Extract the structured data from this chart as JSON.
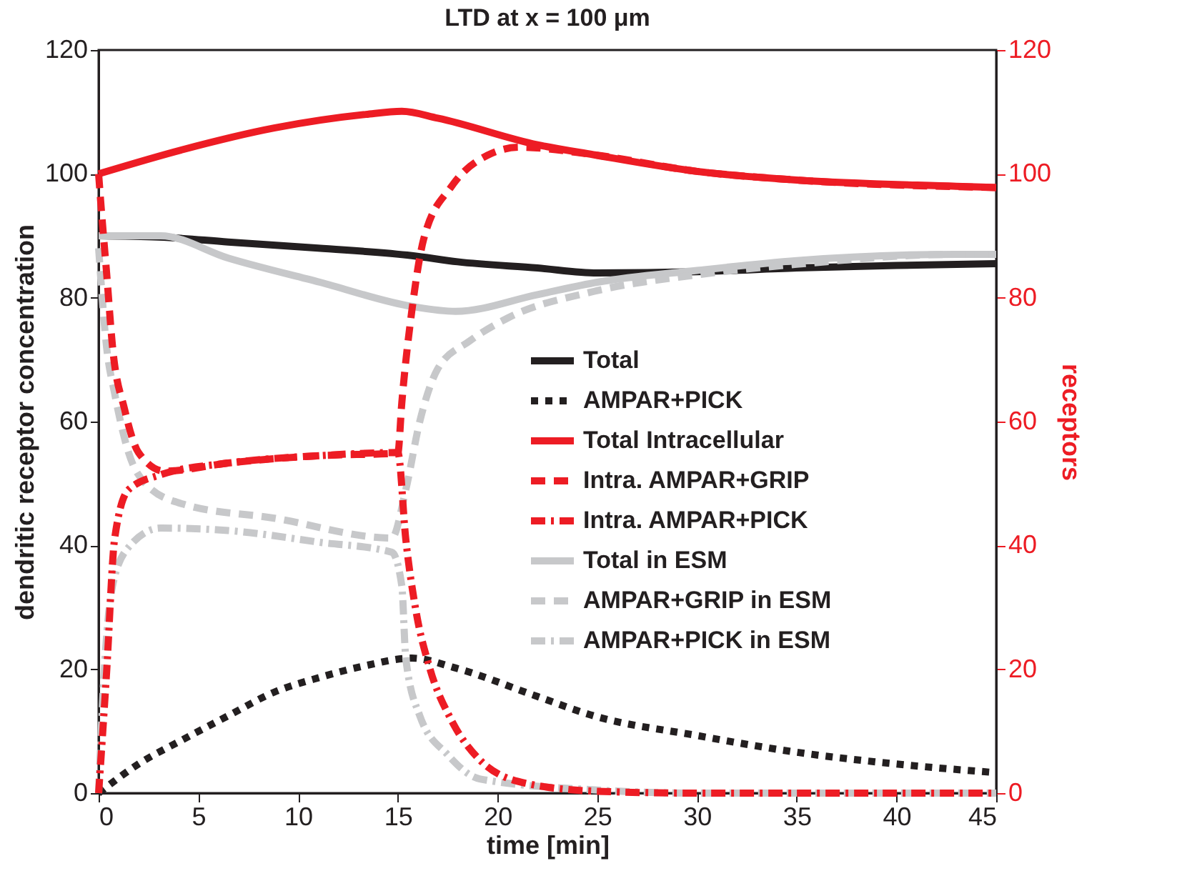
{
  "chart_data": {
    "type": "line",
    "title": "LTD at x = 100 μm",
    "xlabel": "time [min]",
    "ylabel": "dendritic receptor concentration",
    "y2label": "receptors",
    "xlim": [
      0,
      45
    ],
    "xticks": [
      0,
      5,
      10,
      15,
      20,
      25,
      30,
      35,
      40,
      45
    ],
    "ylim": [
      0,
      120
    ],
    "yticks": [
      0,
      20,
      40,
      60,
      80,
      100,
      120
    ],
    "y2lim": [
      0,
      120
    ],
    "y2ticks": [
      0,
      20,
      40,
      60,
      80,
      100,
      120
    ],
    "grid": false,
    "legend": "right",
    "marker": "none",
    "series": [
      {
        "name": "Total",
        "color": "#231f20",
        "line_style": "solid",
        "x": [
          0,
          3,
          6.5,
          11,
          15.7,
          18,
          22,
          25,
          30,
          35,
          40,
          45
        ],
        "values": [
          90,
          89.8,
          89,
          88,
          86.8,
          85.8,
          84.8,
          84,
          84.2,
          84.8,
          85.2,
          85.5
        ]
      },
      {
        "name": "AMPAR+PICK",
        "color": "#231f20",
        "line_style": "dotted",
        "x": [
          0,
          2,
          4.2,
          6.5,
          8.8,
          11.1,
          13.4,
          15.7,
          17.9,
          22,
          24.8,
          30,
          35,
          40,
          45
        ],
        "values": [
          0,
          4.7,
          8.6,
          12.5,
          16.3,
          18.7,
          20.6,
          21.8,
          20.2,
          15.6,
          12.5,
          9.3,
          6.6,
          4.7,
          3.3
        ]
      },
      {
        "name": "Total Intracellular",
        "color": "#ed1c24",
        "line_style": "solid",
        "axis": "y2",
        "x": [
          0,
          4.2,
          8.8,
          13.4,
          15.2,
          17,
          22,
          24.8,
          30,
          35,
          43,
          45
        ],
        "values": [
          100,
          103.9,
          107.4,
          109.6,
          110.1,
          109,
          104.7,
          103.1,
          100.4,
          99,
          98,
          97.8
        ]
      },
      {
        "name": "Intra. AMPAR+GRIP",
        "color": "#ed1c24",
        "line_style": "dashed",
        "axis": "y2",
        "x": [
          0,
          0.1,
          0.4,
          0.7,
          1.3,
          2,
          3.3,
          6.5,
          11.1,
          15,
          15.2,
          15.7,
          16.3,
          17.7,
          19.5,
          21.1,
          24.8,
          30,
          35,
          45
        ],
        "values": [
          100,
          95.7,
          84,
          72,
          62,
          55,
          52,
          53.3,
          54.5,
          54.9,
          63,
          77.8,
          89.5,
          98,
          103,
          104.3,
          103.1,
          100.4,
          99,
          97.8
        ]
      },
      {
        "name": "Intra. AMPAR+PICK",
        "color": "#ed1c24",
        "line_style": "dashdot",
        "axis": "y2",
        "x": [
          0,
          0.4,
          0.8,
          1.5,
          3.1,
          6.5,
          11.1,
          15,
          15.4,
          15.9,
          16.6,
          17.7,
          19.1,
          21.4,
          25,
          30,
          45
        ],
        "values": [
          0,
          19.5,
          41,
          49,
          51.4,
          53.3,
          54.5,
          55,
          41,
          29.6,
          20.2,
          11.7,
          5.4,
          1.6,
          0.3,
          0,
          0
        ]
      },
      {
        "name": "Total in ESM",
        "color": "#c7c8ca",
        "line_style": "solid",
        "x": [
          0,
          3.1,
          6.5,
          11.1,
          15.7,
          17.9,
          22,
          25,
          30,
          35,
          43,
          45
        ],
        "values": [
          90,
          90,
          86.4,
          82.5,
          78.6,
          77.8,
          80.5,
          82.5,
          84.4,
          86,
          87,
          87
        ]
      },
      {
        "name": "AMPAR+GRIP in ESM",
        "color": "#c7c8ca",
        "line_style": "dashed",
        "x": [
          0,
          0.4,
          0.8,
          1.5,
          2.4,
          4.2,
          8.8,
          14.7,
          15.4,
          16.1,
          17,
          18.6,
          20.5,
          24.8,
          30,
          35,
          43,
          45
        ],
        "values": [
          88,
          72,
          64.6,
          55,
          49.8,
          46.7,
          44.4,
          41.2,
          49,
          60,
          68.5,
          73,
          76.7,
          81,
          83.7,
          85.4,
          87,
          87
        ]
      },
      {
        "name": "AMPAR+PICK in ESM",
        "color": "#c7c8ca",
        "line_style": "dashdot",
        "x": [
          0,
          0.25,
          0.7,
          1.5,
          3.1,
          6.5,
          11.1,
          14.7,
          15.2,
          15.4,
          16.1,
          17.5,
          19.1,
          25,
          30,
          45
        ],
        "values": [
          0,
          17.9,
          33.5,
          39.7,
          42.8,
          42.4,
          40.5,
          38.9,
          33.5,
          21.8,
          12.5,
          6.2,
          2.3,
          0.5,
          0,
          0
        ]
      }
    ]
  }
}
